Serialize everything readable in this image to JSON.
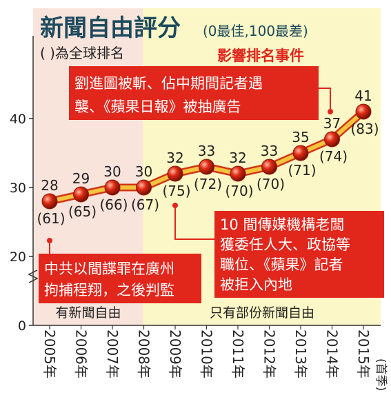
{
  "title": "新聞自由評分",
  "title_note": "(0最佳,100最差)",
  "subtitle": "( )為全球排名",
  "colors": {
    "panel_free": "#f9e4dc",
    "panel_partly": "#fbf7c6",
    "line": "#f3c43c",
    "line_edge": "#d23418",
    "point": "#dd2a12",
    "callout_bg": "#e1261c",
    "callout_title": "#e1261c",
    "title": "#1c4a5c"
  },
  "regions": {
    "free_label": "有新聞自由",
    "partly_free_label": "只有部份新聞自由"
  },
  "annotations": {
    "event_title": "影響排名事件",
    "event_2014": [
      "劉進圖被斬、佔中期間記者遇",
      "襲、《蘋果日報》被抽廣告"
    ],
    "event_2009": [
      "10 間傳媒機構老闆",
      "獲委任人大、政協等",
      "職位、《蘋果》記者",
      "被拒入內地"
    ],
    "event_2005": [
      "中共以間諜罪在廣州",
      "拘捕程翔，之後判監"
    ]
  },
  "x_note": "(首季)",
  "chart_data": {
    "type": "line",
    "categories": [
      "2005年",
      "2006年",
      "2007年",
      "2008年",
      "2009年",
      "2010年",
      "2011年",
      "2012年",
      "2013年",
      "2014年",
      "2015年"
    ],
    "values": [
      28,
      29,
      30,
      30,
      32,
      33,
      32,
      33,
      35,
      37,
      41
    ],
    "ranks": [
      "(61)",
      "(65)",
      "(66)",
      "(67)",
      "(75)",
      "(72)",
      "(70)",
      "(70)",
      "(71)",
      "(74)",
      "(83)"
    ],
    "yticks": [
      0,
      20,
      30,
      40
    ],
    "ylim": [
      0,
      46
    ]
  }
}
